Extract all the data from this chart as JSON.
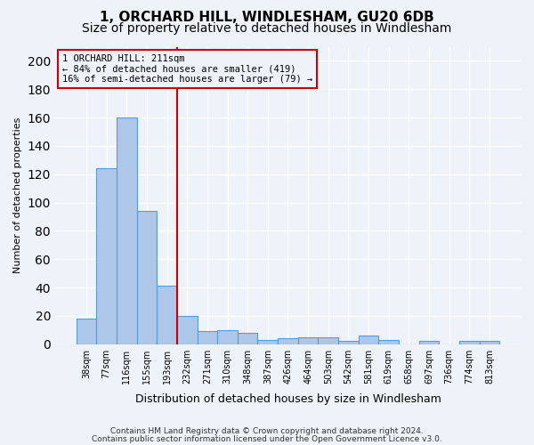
{
  "title": "1, ORCHARD HILL, WINDLESHAM, GU20 6DB",
  "subtitle": "Size of property relative to detached houses in Windlesham",
  "xlabel": "Distribution of detached houses by size in Windlesham",
  "ylabel": "Number of detached properties",
  "footnote1": "Contains HM Land Registry data © Crown copyright and database right 2024.",
  "footnote2": "Contains public sector information licensed under the Open Government Licence v3.0.",
  "categories": [
    "38sqm",
    "77sqm",
    "116sqm",
    "155sqm",
    "193sqm",
    "232sqm",
    "271sqm",
    "310sqm",
    "348sqm",
    "387sqm",
    "426sqm",
    "464sqm",
    "503sqm",
    "542sqm",
    "581sqm",
    "619sqm",
    "658sqm",
    "697sqm",
    "736sqm",
    "774sqm",
    "813sqm"
  ],
  "values": [
    18,
    124,
    160,
    94,
    41,
    20,
    9,
    10,
    8,
    3,
    4,
    5,
    5,
    2,
    6,
    3,
    0,
    2,
    0,
    2,
    2
  ],
  "bar_color": "#aec6e8",
  "bar_edge_color": "#5b9bd5",
  "vline_x": 4.5,
  "vline_color": "#cc0000",
  "annotation_title": "1 ORCHARD HILL: 211sqm",
  "annotation_line1": "← 84% of detached houses are smaller (419)",
  "annotation_line2": "16% of semi-detached houses are larger (79) →",
  "annotation_box_color": "#cc0000",
  "ylim": [
    0,
    210
  ],
  "yticks": [
    0,
    20,
    40,
    60,
    80,
    100,
    120,
    140,
    160,
    180,
    200
  ],
  "background_color": "#eef2f9",
  "grid_color": "#ffffff",
  "title_fontsize": 11,
  "subtitle_fontsize": 10
}
